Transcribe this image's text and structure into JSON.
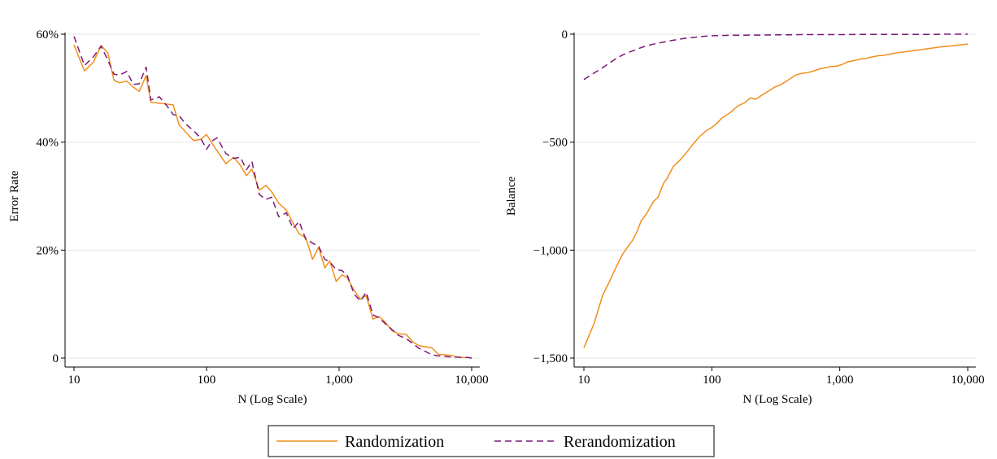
{
  "colors": {
    "randomization": "#f28e1c",
    "rerandomization": "#7a1a78",
    "grid": "#e6e6e6",
    "axis": "#000000"
  },
  "legend": {
    "placement": "bottom-center",
    "items": [
      {
        "label": "Randomization",
        "series_style": "solid",
        "color": "#f28e1c"
      },
      {
        "label": "Rerandomization",
        "series_style": "dashed",
        "color": "#7a1a78"
      }
    ]
  },
  "chart_data": [
    {
      "type": "line",
      "xlabel": "N (Log Scale)",
      "ylabel": "Error Rate",
      "x_scale": "log",
      "xlim": [
        10,
        10000
      ],
      "ylim": [
        0,
        60
      ],
      "grid": true,
      "x_ticks": [
        {
          "value": 10,
          "label": "10"
        },
        {
          "value": 100,
          "label": "100"
        },
        {
          "value": 1000,
          "label": "1,000"
        },
        {
          "value": 10000,
          "label": "10,000"
        }
      ],
      "y_ticks": [
        {
          "value": 0,
          "label": "0"
        },
        {
          "value": 20,
          "label": "20%"
        },
        {
          "value": 40,
          "label": "40%"
        },
        {
          "value": 60,
          "label": "60%"
        }
      ],
      "series": [
        {
          "name": "Randomization",
          "style": "solid",
          "x": [
            10,
            12,
            14,
            16,
            18,
            20,
            22,
            25,
            28,
            31,
            35,
            38,
            56,
            62,
            70,
            80,
            90,
            100,
            110,
            120,
            140,
            160,
            180,
            200,
            220,
            250,
            280,
            310,
            350,
            400,
            450,
            500,
            560,
            630,
            700,
            780,
            850,
            950,
            1050,
            1150,
            1300,
            1450,
            1600,
            1800,
            2000,
            2200,
            2500,
            2800,
            3200,
            3600,
            4000,
            4500,
            5000,
            5600,
            6300,
            7000,
            7800,
            8500,
            9300,
            10000
          ],
          "y": [
            58.0,
            53.2,
            54.8,
            57.9,
            56.5,
            51.5,
            51.0,
            51.3,
            50.2,
            49.4,
            52.3,
            47.4,
            46.9,
            43.2,
            41.8,
            40.3,
            40.5,
            41.4,
            39.8,
            38.4,
            36.0,
            37.2,
            35.7,
            33.8,
            35.0,
            31.1,
            32.0,
            30.8,
            28.7,
            27.4,
            25.0,
            23.0,
            22.3,
            18.3,
            20.5,
            16.7,
            18.0,
            14.2,
            15.4,
            14.9,
            12.5,
            10.9,
            11.6,
            7.2,
            7.7,
            6.8,
            5.1,
            4.5,
            4.4,
            3.0,
            2.3,
            2.1,
            1.9,
            0.7,
            0.6,
            0.5,
            0.2,
            0.1,
            0.1,
            0.0
          ]
        },
        {
          "name": "Rerandomization",
          "style": "dashed",
          "x": [
            10,
            12,
            14,
            16,
            18,
            20,
            22,
            25,
            28,
            31,
            35,
            38,
            44,
            50,
            56,
            62,
            70,
            80,
            90,
            100,
            110,
            120,
            140,
            160,
            180,
            200,
            220,
            250,
            280,
            310,
            350,
            400,
            450,
            500,
            560,
            630,
            700,
            780,
            850,
            950,
            1050,
            1150,
            1300,
            1450,
            1600,
            1800,
            2000,
            2200,
            2500,
            2800,
            3200,
            3600,
            4000,
            4500,
            5000,
            5600,
            6300,
            7000,
            7800,
            8500,
            9300,
            10000
          ],
          "y": [
            59.6,
            54.2,
            55.8,
            57.8,
            55.2,
            52.6,
            52.4,
            53.1,
            50.7,
            50.8,
            53.9,
            47.8,
            48.4,
            46.8,
            45.1,
            44.9,
            43.3,
            42.1,
            40.8,
            38.7,
            40.2,
            40.8,
            37.9,
            37.0,
            37.2,
            34.9,
            36.4,
            30.3,
            29.4,
            29.8,
            26.2,
            26.9,
            24.0,
            25.3,
            22.0,
            21.3,
            20.7,
            18.3,
            17.8,
            16.4,
            16.2,
            15.4,
            11.8,
            10.6,
            12.2,
            8.0,
            7.5,
            6.5,
            5.3,
            4.2,
            3.6,
            2.7,
            1.8,
            1.2,
            0.6,
            0.4,
            0.3,
            0.2,
            0.2,
            0.1,
            0.1,
            0.0
          ]
        }
      ]
    },
    {
      "type": "line",
      "xlabel": "N (Log Scale)",
      "ylabel": "Balance",
      "x_scale": "log",
      "xlim": [
        10,
        10000
      ],
      "ylim": [
        -1500,
        0
      ],
      "grid": true,
      "x_ticks": [
        {
          "value": 10,
          "label": "10"
        },
        {
          "value": 100,
          "label": "100"
        },
        {
          "value": 1000,
          "label": "1,000"
        },
        {
          "value": 10000,
          "label": "10,000"
        }
      ],
      "y_ticks": [
        {
          "value": 0,
          "label": "0"
        },
        {
          "value": -500,
          "label": "−500"
        },
        {
          "value": -1000,
          "label": "−1,000"
        },
        {
          "value": -1500,
          "label": "−1,500"
        }
      ],
      "series": [
        {
          "name": "Randomization",
          "style": "solid",
          "x": [
            10,
            12,
            14,
            16,
            18,
            20,
            22,
            24,
            26,
            28,
            31,
            35,
            38,
            42,
            45,
            50,
            53,
            56,
            62,
            70,
            80,
            90,
            100,
            110,
            120,
            140,
            160,
            180,
            200,
            220,
            250,
            280,
            310,
            350,
            400,
            450,
            500,
            560,
            630,
            700,
            780,
            850,
            950,
            1050,
            1150,
            1300,
            1450,
            1600,
            1800,
            2000,
            2200,
            2500,
            2800,
            3200,
            3600,
            4000,
            4500,
            5000,
            5600,
            6300,
            7000,
            7800,
            8500,
            9300,
            10000
          ],
          "y": [
            -1452,
            -1340,
            -1210,
            -1140,
            -1075,
            -1020,
            -985,
            -955,
            -915,
            -865,
            -830,
            -775,
            -755,
            -690,
            -665,
            -612,
            -598,
            -585,
            -555,
            -515,
            -475,
            -448,
            -432,
            -412,
            -388,
            -362,
            -332,
            -318,
            -295,
            -302,
            -280,
            -262,
            -245,
            -233,
            -210,
            -190,
            -182,
            -178,
            -170,
            -160,
            -155,
            -150,
            -148,
            -140,
            -128,
            -122,
            -115,
            -112,
            -105,
            -100,
            -98,
            -92,
            -86,
            -82,
            -78,
            -74,
            -70,
            -66,
            -62,
            -58,
            -56,
            -53,
            -50,
            -48,
            -45
          ]
        },
        {
          "name": "Rerandomization",
          "style": "dashed",
          "x": [
            10,
            12,
            14,
            16,
            18,
            20,
            22,
            25,
            28,
            31,
            35,
            40,
            45,
            50,
            56,
            62,
            70,
            80,
            90,
            100,
            120,
            140,
            160,
            200,
            250,
            300,
            400,
            500,
            700,
            1000,
            1500,
            2000,
            3000,
            5000,
            7000,
            10000
          ],
          "y": [
            -210,
            -180,
            -155,
            -132,
            -112,
            -97,
            -86,
            -74,
            -62,
            -54,
            -46,
            -39,
            -33,
            -28,
            -23,
            -19,
            -16,
            -12,
            -9,
            -7,
            -6,
            -5,
            -5,
            -4,
            -4,
            -3,
            -3,
            -2,
            -2,
            -2,
            -1,
            -1,
            -1,
            -1,
            0,
            0
          ]
        }
      ]
    }
  ]
}
